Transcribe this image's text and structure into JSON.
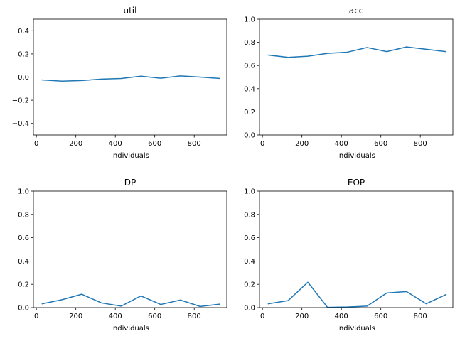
{
  "chart_data": [
    {
      "type": "line",
      "title": "util",
      "xlabel": "individuals",
      "ylabel": "",
      "xlim": [
        -15,
        965
      ],
      "ylim": [
        -0.5,
        0.5
      ],
      "xticks": [
        0,
        200,
        400,
        600,
        800
      ],
      "yticks": [
        -0.4,
        -0.2,
        0.0,
        0.2,
        0.4
      ],
      "ytick_labels": [
        "−0.4",
        "−0.2",
        "0.0",
        "0.2",
        "0.4"
      ],
      "grid": false,
      "color": "#1f77b4",
      "series": [
        {
          "x": [
            30,
            130,
            230,
            330,
            430,
            530,
            630,
            730,
            830,
            930
          ],
          "y": [
            -0.025,
            -0.035,
            -0.03,
            -0.018,
            -0.012,
            0.008,
            -0.01,
            0.01,
            0.0,
            -0.012
          ]
        }
      ]
    },
    {
      "type": "line",
      "title": "acc",
      "xlabel": "individuals",
      "ylabel": "",
      "xlim": [
        -15,
        965
      ],
      "ylim": [
        0.0,
        1.0
      ],
      "xticks": [
        0,
        200,
        400,
        600,
        800
      ],
      "yticks": [
        0.0,
        0.2,
        0.4,
        0.6,
        0.8,
        1.0
      ],
      "ytick_labels": [
        "0.0",
        "0.2",
        "0.4",
        "0.6",
        "0.8",
        "1.0"
      ],
      "grid": false,
      "color": "#1f77b4",
      "series": [
        {
          "x": [
            30,
            130,
            230,
            330,
            430,
            530,
            630,
            730,
            830,
            930
          ],
          "y": [
            0.69,
            0.67,
            0.68,
            0.705,
            0.715,
            0.755,
            0.72,
            0.76,
            0.74,
            0.72
          ]
        }
      ]
    },
    {
      "type": "line",
      "title": "DP",
      "xlabel": "individuals",
      "ylabel": "",
      "xlim": [
        -15,
        965
      ],
      "ylim": [
        0.0,
        1.0
      ],
      "xticks": [
        0,
        200,
        400,
        600,
        800
      ],
      "yticks": [
        0.0,
        0.2,
        0.4,
        0.6,
        0.8,
        1.0
      ],
      "ytick_labels": [
        "0.0",
        "0.2",
        "0.4",
        "0.6",
        "0.8",
        "1.0"
      ],
      "grid": false,
      "color": "#1f77b4",
      "series": [
        {
          "x": [
            30,
            130,
            230,
            330,
            430,
            530,
            630,
            730,
            830,
            930
          ],
          "y": [
            0.033,
            0.068,
            0.115,
            0.04,
            0.013,
            0.1,
            0.027,
            0.065,
            0.01,
            0.03
          ]
        }
      ]
    },
    {
      "type": "line",
      "title": "EOP",
      "xlabel": "individuals",
      "ylabel": "",
      "xlim": [
        -15,
        965
      ],
      "ylim": [
        0.0,
        1.0
      ],
      "xticks": [
        0,
        200,
        400,
        600,
        800
      ],
      "yticks": [
        0.0,
        0.2,
        0.4,
        0.6,
        0.8,
        1.0
      ],
      "ytick_labels": [
        "0.0",
        "0.2",
        "0.4",
        "0.6",
        "0.8",
        "1.0"
      ],
      "grid": false,
      "color": "#1f77b4",
      "series": [
        {
          "x": [
            30,
            130,
            230,
            330,
            430,
            530,
            630,
            730,
            830,
            930
          ],
          "y": [
            0.033,
            0.06,
            0.218,
            0.002,
            0.005,
            0.013,
            0.126,
            0.138,
            0.033,
            0.112
          ]
        }
      ]
    }
  ]
}
